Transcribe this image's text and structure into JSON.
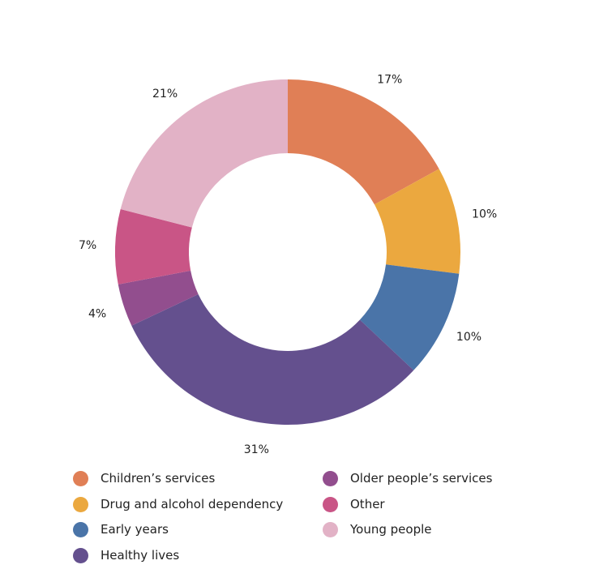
{
  "chart_data": {
    "type": "pie",
    "style": "donut",
    "title": "",
    "slices": [
      {
        "label": "Children’s services",
        "value": 17,
        "display": "17%",
        "color": "#e07f56"
      },
      {
        "label": "Drug and alcohol dependency",
        "value": 10,
        "display": "10%",
        "color": "#eba83f"
      },
      {
        "label": "Early years",
        "value": 10,
        "display": "10%",
        "color": "#4a74a8"
      },
      {
        "label": "Healthy lives",
        "value": 31,
        "display": "31%",
        "color": "#64508e"
      },
      {
        "label": "Older people’s services",
        "value": 4,
        "display": "4%",
        "color": "#924e8e"
      },
      {
        "label": "Other",
        "value": 7,
        "display": "7%",
        "color": "#c95586"
      },
      {
        "label": "Young people",
        "value": 21,
        "display": "21%",
        "color": "#e2b2c6"
      }
    ],
    "legend_position": "bottom"
  }
}
